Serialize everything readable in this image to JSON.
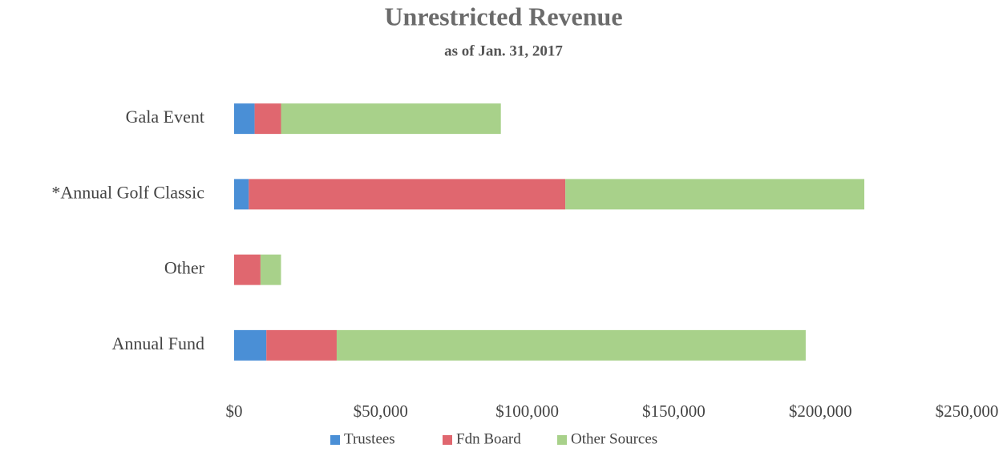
{
  "chart_data": {
    "type": "stacked-bar-horizontal",
    "title": "Unrestricted Revenue",
    "subtitle": "as of Jan. 31, 2017",
    "categories": [
      "Gala Event",
      "*Annual Golf Classic",
      "Other",
      "Annual Fund"
    ],
    "series": [
      {
        "name": "Trustees",
        "color": "#4a8fd6",
        "values": [
          7000,
          5000,
          0,
          11000
        ]
      },
      {
        "name": "Fdn Board",
        "color": "#e0676f",
        "values": [
          9000,
          108000,
          9000,
          24000
        ]
      },
      {
        "name": "Other Sources",
        "color": "#a8d18a",
        "values": [
          75000,
          102000,
          7000,
          160000
        ]
      }
    ],
    "xlim": [
      0,
      250000
    ],
    "xticks": [
      {
        "value": 0,
        "label": "$0"
      },
      {
        "value": 50000,
        "label": "$50,000"
      },
      {
        "value": 100000,
        "label": "$100,000"
      },
      {
        "value": 150000,
        "label": "$150,000"
      },
      {
        "value": 200000,
        "label": "$200,000"
      },
      {
        "value": 250000,
        "label": "$250,000"
      }
    ],
    "grid": false,
    "legend": "bottom"
  }
}
